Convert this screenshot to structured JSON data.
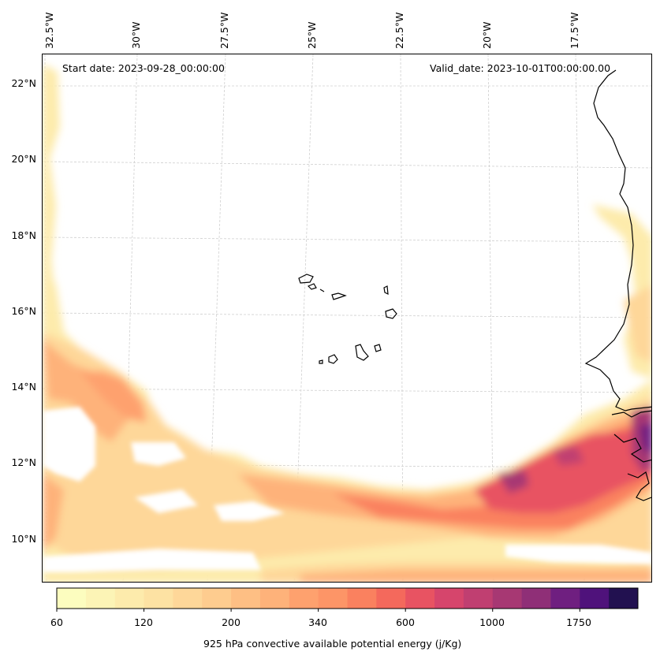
{
  "map": {
    "start_date": "Start date: 2023-09-28_00:00:00",
    "valid_date": "Valid_date: 2023-10-01T00:00:00.00",
    "lon_labels": [
      "32.5°W",
      "30°W",
      "27.5°W",
      "25°W",
      "22.5°W",
      "20°W",
      "17.5°W"
    ],
    "lat_labels": [
      "22°N",
      "20°N",
      "18°N",
      "16°N",
      "14°N",
      "12°N",
      "10°N"
    ]
  },
  "colorbar": {
    "title": "925 hPa convective available potential energy (j/Kg)",
    "tick_labels": [
      "60",
      "120",
      "200",
      "340",
      "600",
      "1000",
      "1750"
    ],
    "colors": [
      "#fcfdbf",
      "#fcf4b6",
      "#fdebac",
      "#fde2a3",
      "#fed799",
      "#fecc8f",
      "#febf84",
      "#feb27a",
      "#fea16e",
      "#fd9567",
      "#fa815f",
      "#f4695c",
      "#e85362",
      "#d6456c",
      "#c03f71",
      "#a73873",
      "#8f2f77",
      "#6f1f80",
      "#4f127b",
      "#221150"
    ]
  },
  "chart_data": {
    "type": "heatmap",
    "title": "",
    "variable": "925 hPa convective available potential energy (j/Kg)",
    "colorbar_levels": [
      60,
      120,
      200,
      340,
      600,
      1000,
      1750
    ],
    "lon_ticks": [
      "32.5°W",
      "30°W",
      "27.5°W",
      "25°W",
      "22.5°W",
      "20°W",
      "17.5°W"
    ],
    "lat_ticks": [
      "22°N",
      "20°N",
      "18°N",
      "16°N",
      "14°N",
      "12°N",
      "10°N"
    ],
    "annotations": [
      "Start date: 2023-09-28_00:00:00",
      "Valid_date: 2023-10-01T00:00:00.00"
    ]
  }
}
